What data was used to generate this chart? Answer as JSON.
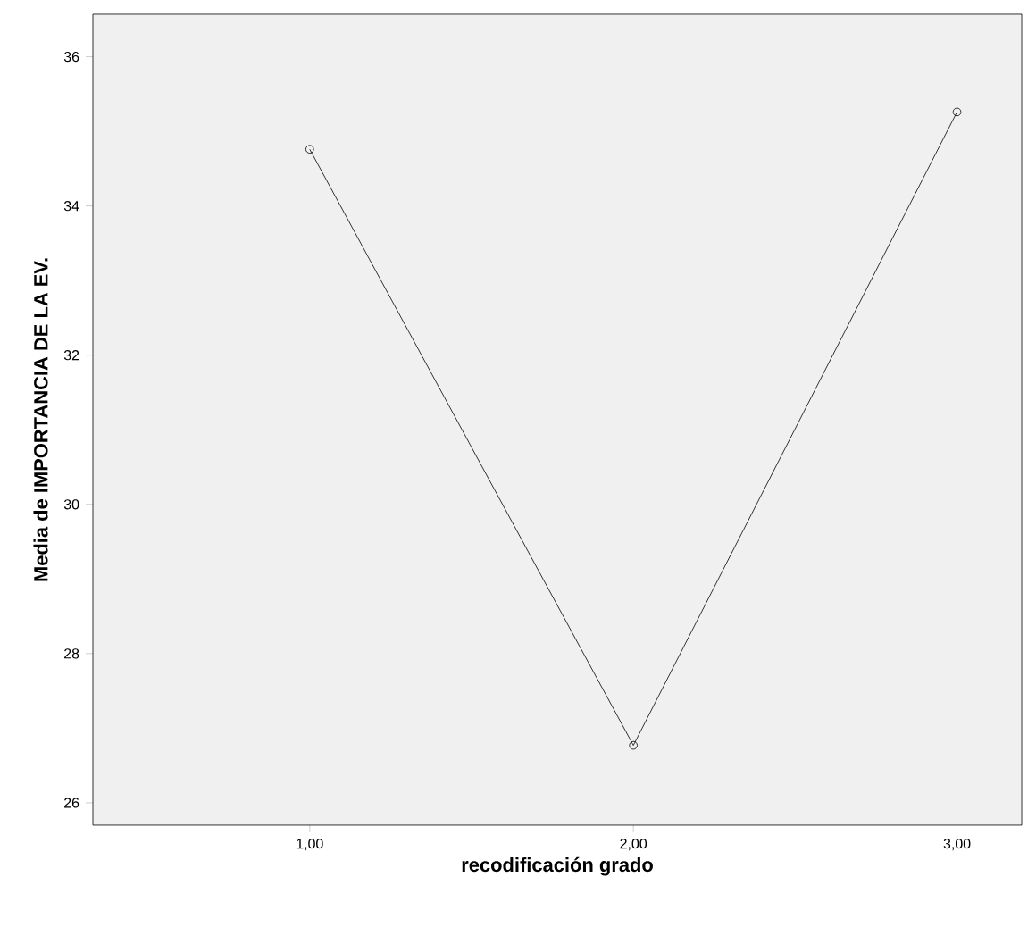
{
  "chart_data": {
    "type": "line",
    "xlabel": "recodificación grado",
    "ylabel": "Media de IMPORTANCIA DE LA EV.",
    "categories": [
      "1,00",
      "2,00",
      "3,00"
    ],
    "values": [
      34.76,
      26.77,
      35.26
    ],
    "color": "#000000",
    "marker": "circle",
    "line_style": "solid",
    "ylim": [
      25.7,
      36.57
    ],
    "yticks": [
      26,
      28,
      30,
      32,
      34,
      36
    ],
    "grid": false
  }
}
